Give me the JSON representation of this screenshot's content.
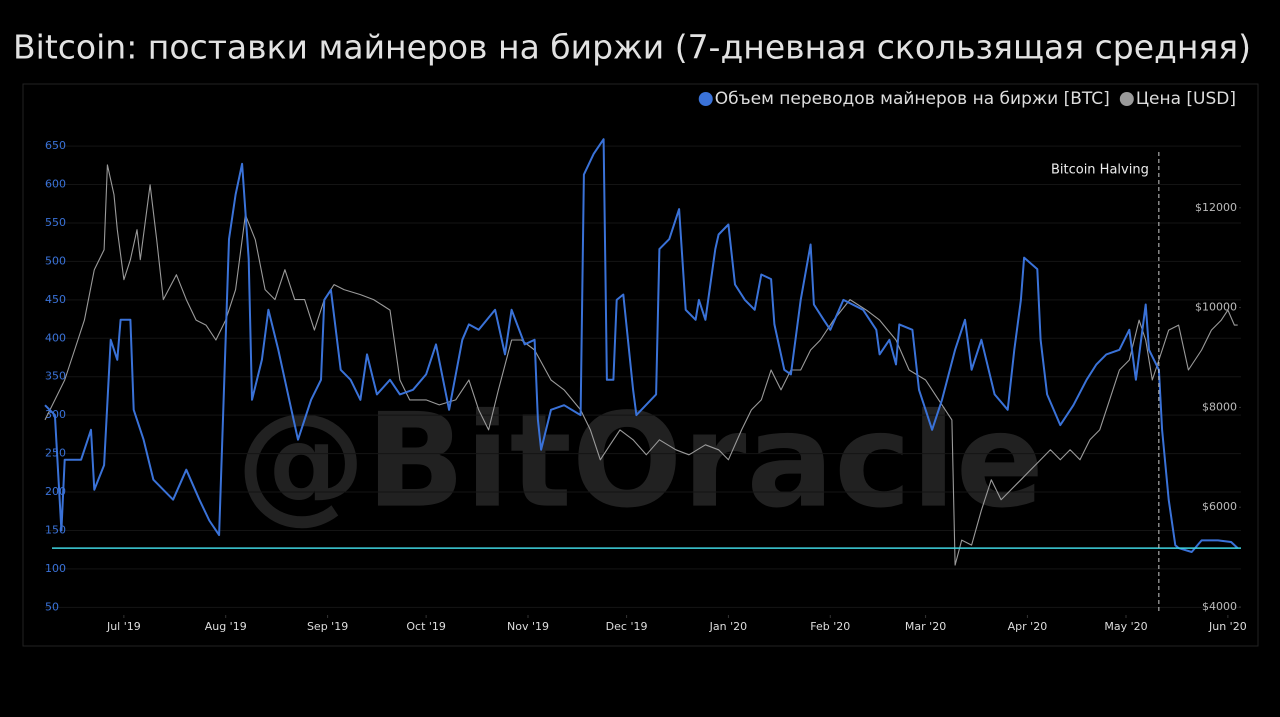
{
  "chart_data": {
    "type": "line",
    "title": "Bitcoin: поставки майнеров на биржи (7-дневная скользящая средняя)",
    "watermark": "@BitOracle",
    "xlim": [
      -24,
      340
    ],
    "xticks": [
      {
        "value": 0,
        "label": "Jul '19"
      },
      {
        "value": 31,
        "label": "Aug '19"
      },
      {
        "value": 62,
        "label": "Sep '19"
      },
      {
        "value": 92,
        "label": "Oct '19"
      },
      {
        "value": 123,
        "label": "Nov '19"
      },
      {
        "value": 153,
        "label": "Dec '19"
      },
      {
        "value": 184,
        "label": "Jan '20"
      },
      {
        "value": 215,
        "label": "Feb '20"
      },
      {
        "value": 244,
        "label": "Mar '20"
      },
      {
        "value": 275,
        "label": "Apr '20"
      },
      {
        "value": 305,
        "label": "May '20"
      },
      {
        "value": 336,
        "label": "Jun '20"
      }
    ],
    "ylim": [
      40,
      710
    ],
    "yticks": [
      50,
      100,
      150,
      200,
      250,
      300,
      350,
      400,
      450,
      500,
      550,
      600,
      650
    ],
    "y2lim": [
      3840,
      14160
    ],
    "y2ticks": [
      {
        "value": 4000,
        "label": "$4000"
      },
      {
        "value": 6000,
        "label": "$6000"
      },
      {
        "value": 8000,
        "label": "$8000"
      },
      {
        "value": 10000,
        "label": "$10000"
      },
      {
        "value": 12000,
        "label": "$12000"
      }
    ],
    "grid": true,
    "legend": "top-right",
    "annotation": {
      "x": 315,
      "label": "Bitcoin Halving"
    },
    "hline": {
      "y": 127,
      "color": "#3fd4e0"
    },
    "series": [
      {
        "name": "Цена [USD]",
        "color": "#9a9a9a",
        "axis": "y2",
        "x": [
          -24,
          -21,
          -18,
          -15,
          -12,
          -9,
          -6,
          -5,
          -3,
          -2,
          0,
          2,
          4,
          5,
          8,
          10,
          12,
          16,
          19,
          22,
          25,
          28,
          31,
          34,
          37,
          40,
          43,
          46,
          49,
          52,
          55,
          58,
          61,
          64,
          67,
          72,
          76,
          81,
          84,
          87,
          92,
          96,
          101,
          105,
          108,
          111,
          114,
          118,
          121,
          125,
          130,
          134,
          139,
          142,
          145,
          148,
          151,
          155,
          159,
          163,
          168,
          172,
          177,
          181,
          184,
          188,
          191,
          194,
          197,
          200,
          203,
          206,
          209,
          212,
          216,
          221,
          226,
          230,
          235,
          239,
          244,
          248,
          252,
          253,
          255,
          258,
          261,
          264,
          267,
          270,
          273,
          276,
          279,
          282,
          285,
          288,
          291,
          294,
          297,
          300,
          303,
          306,
          309,
          311,
          313,
          315,
          318,
          321,
          324,
          328,
          331,
          334,
          336,
          338,
          339
        ],
        "values": [
          7750,
          8150,
          8550,
          9150,
          9750,
          10760,
          11160,
          12860,
          12260,
          11560,
          10560,
          10960,
          11560,
          10960,
          12460,
          11360,
          10160,
          10660,
          10160,
          9750,
          9650,
          9350,
          9750,
          10360,
          11860,
          11360,
          10360,
          10160,
          10760,
          10160,
          10160,
          9550,
          10160,
          10460,
          10360,
          10260,
          10160,
          9950,
          8550,
          8150,
          8150,
          8050,
          8150,
          8550,
          7950,
          7550,
          8350,
          9350,
          9350,
          9150,
          8550,
          8350,
          7950,
          7550,
          6950,
          7250,
          7550,
          7350,
          7050,
          7350,
          7150,
          7050,
          7250,
          7150,
          6950,
          7550,
          7950,
          8150,
          8750,
          8350,
          8750,
          8750,
          9150,
          9350,
          9750,
          10160,
          9950,
          9750,
          9350,
          8750,
          8550,
          8150,
          7750,
          4840,
          5340,
          5240,
          5940,
          6550,
          6150,
          6350,
          6550,
          6750,
          6950,
          7150,
          6950,
          7150,
          6950,
          7350,
          7550,
          8150,
          8750,
          8950,
          9750,
          9350,
          8550,
          8950,
          9550,
          9650,
          8750,
          9150,
          9550,
          9750,
          9950,
          9650,
          9650
        ]
      },
      {
        "name": "Объем переводов майнеров на биржи [BTC]",
        "color": "#3a72d8",
        "axis": "y",
        "x": [
          -24,
          -21,
          -19,
          -18,
          -13,
          -10,
          -9,
          -6,
          -4,
          -2,
          -1,
          2,
          3,
          6,
          9,
          15,
          19,
          23,
          26,
          29,
          32,
          34,
          36,
          38,
          39,
          42,
          44,
          47,
          51,
          53,
          57,
          60,
          61,
          63,
          66,
          69,
          72,
          74,
          77,
          81,
          84,
          88,
          92,
          95,
          99,
          103,
          105,
          108,
          113,
          116,
          118,
          122,
          125,
          126,
          127,
          130,
          134,
          139,
          140,
          143,
          146,
          147,
          149,
          150,
          152,
          155,
          156,
          162,
          163,
          166,
          169,
          171,
          174,
          175,
          177,
          180,
          181,
          184,
          186,
          189,
          192,
          194,
          197,
          198,
          201,
          203,
          206,
          209,
          210,
          213,
          215,
          219,
          225,
          229,
          230,
          233,
          235,
          236,
          240,
          242,
          244,
          246,
          249,
          253,
          256,
          258,
          261,
          265,
          269,
          271,
          273,
          274,
          278,
          279,
          281,
          285,
          289,
          293,
          296,
          299,
          303,
          306,
          308,
          311,
          312,
          315,
          316,
          318,
          320,
          321,
          325,
          328,
          333,
          337,
          339
        ],
        "values": [
          313,
          300,
          150,
          242,
          242,
          281,
          203,
          235,
          398,
          372,
          424,
          424,
          307,
          268,
          216,
          190,
          229,
          190,
          163,
          144,
          529,
          587,
          627,
          503,
          320,
          372,
          437,
          385,
          307,
          268,
          320,
          346,
          450,
          463,
          359,
          346,
          320,
          379,
          327,
          346,
          327,
          333,
          353,
          392,
          307,
          398,
          418,
          411,
          437,
          379,
          437,
          392,
          398,
          294,
          255,
          307,
          313,
          300,
          613,
          640,
          659,
          346,
          346,
          450,
          457,
          333,
          300,
          327,
          516,
          529,
          568,
          437,
          424,
          450,
          424,
          516,
          535,
          548,
          470,
          450,
          437,
          483,
          477,
          418,
          359,
          353,
          450,
          522,
          444,
          424,
          411,
          450,
          437,
          411,
          379,
          398,
          366,
          418,
          411,
          333,
          307,
          281,
          320,
          385,
          424,
          359,
          398,
          327,
          307,
          385,
          450,
          505,
          490,
          398,
          327,
          287,
          313,
          346,
          366,
          379,
          385,
          411,
          346,
          444,
          385,
          359,
          281,
          190,
          131,
          127,
          122,
          137,
          137,
          135,
          127
        ]
      }
    ]
  }
}
